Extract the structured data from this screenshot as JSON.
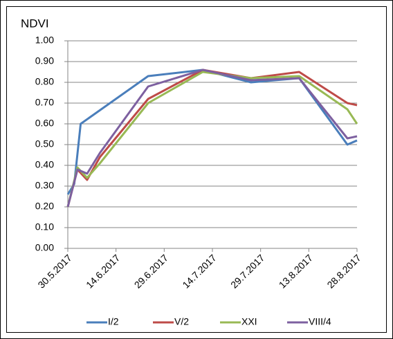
{
  "chart_data": {
    "type": "line",
    "title": "NDVI",
    "xlim": [
      "2017-05-30",
      "2017-08-28"
    ],
    "xticks": [
      {
        "value": "2017-05-30",
        "label": "30.5.2017"
      },
      {
        "value": "2017-06-14",
        "label": "14.6.2017"
      },
      {
        "value": "2017-06-29",
        "label": "29.6.2017"
      },
      {
        "value": "2017-07-14",
        "label": "14.7.2017"
      },
      {
        "value": "2017-07-29",
        "label": "29.7.2017"
      },
      {
        "value": "2017-08-13",
        "label": "13.8.2017"
      },
      {
        "value": "2017-08-28",
        "label": "28.8.2017"
      }
    ],
    "ylim": [
      0,
      1
    ],
    "yticks": [
      {
        "value": 0,
        "label": "0.00"
      },
      {
        "value": 0.1,
        "label": "0.10"
      },
      {
        "value": 0.2,
        "label": "0.20"
      },
      {
        "value": 0.3,
        "label": "0.30"
      },
      {
        "value": 0.4,
        "label": "0.40"
      },
      {
        "value": 0.5,
        "label": "0.50"
      },
      {
        "value": 0.6,
        "label": "0.60"
      },
      {
        "value": 0.7,
        "label": "0.70"
      },
      {
        "value": 0.8,
        "label": "0.80"
      },
      {
        "value": 0.9,
        "label": "0.90"
      },
      {
        "value": 1,
        "label": "1.00"
      }
    ],
    "grid": true,
    "legend": "bottom",
    "series": [
      {
        "name": "I/2",
        "color": "#4a7ebb",
        "x": [
          "2017-05-30",
          "2017-06-01",
          "2017-06-03",
          "2017-06-24",
          "2017-07-11",
          "2017-07-26",
          "2017-08-10",
          "2017-08-25",
          "2017-08-28"
        ],
        "values": [
          0.26,
          0.31,
          0.6,
          0.83,
          0.86,
          0.8,
          0.82,
          0.5,
          0.52
        ]
      },
      {
        "name": "V/2",
        "color": "#be4b48",
        "x": [
          "2017-05-30",
          "2017-06-02",
          "2017-06-05",
          "2017-06-09",
          "2017-06-24",
          "2017-07-11",
          "2017-07-26",
          "2017-08-10",
          "2017-08-25",
          "2017-08-28"
        ],
        "values": [
          0.2,
          0.38,
          0.33,
          0.44,
          0.72,
          0.86,
          0.82,
          0.85,
          0.7,
          0.69
        ]
      },
      {
        "name": "XXI",
        "color": "#98b954",
        "x": [
          "2017-05-30",
          "2017-06-02",
          "2017-06-05",
          "2017-06-09",
          "2017-06-24",
          "2017-07-11",
          "2017-07-26",
          "2017-08-10",
          "2017-08-25",
          "2017-08-28"
        ],
        "values": [
          0.2,
          0.39,
          0.34,
          0.41,
          0.7,
          0.85,
          0.82,
          0.83,
          0.67,
          0.6
        ]
      },
      {
        "name": "VIII/4",
        "color": "#7d60a0",
        "x": [
          "2017-05-30",
          "2017-06-02",
          "2017-06-05",
          "2017-06-09",
          "2017-06-24",
          "2017-07-11",
          "2017-07-26",
          "2017-08-10",
          "2017-08-25",
          "2017-08-28"
        ],
        "values": [
          0.2,
          0.38,
          0.36,
          0.46,
          0.78,
          0.86,
          0.81,
          0.82,
          0.53,
          0.54
        ]
      }
    ]
  }
}
